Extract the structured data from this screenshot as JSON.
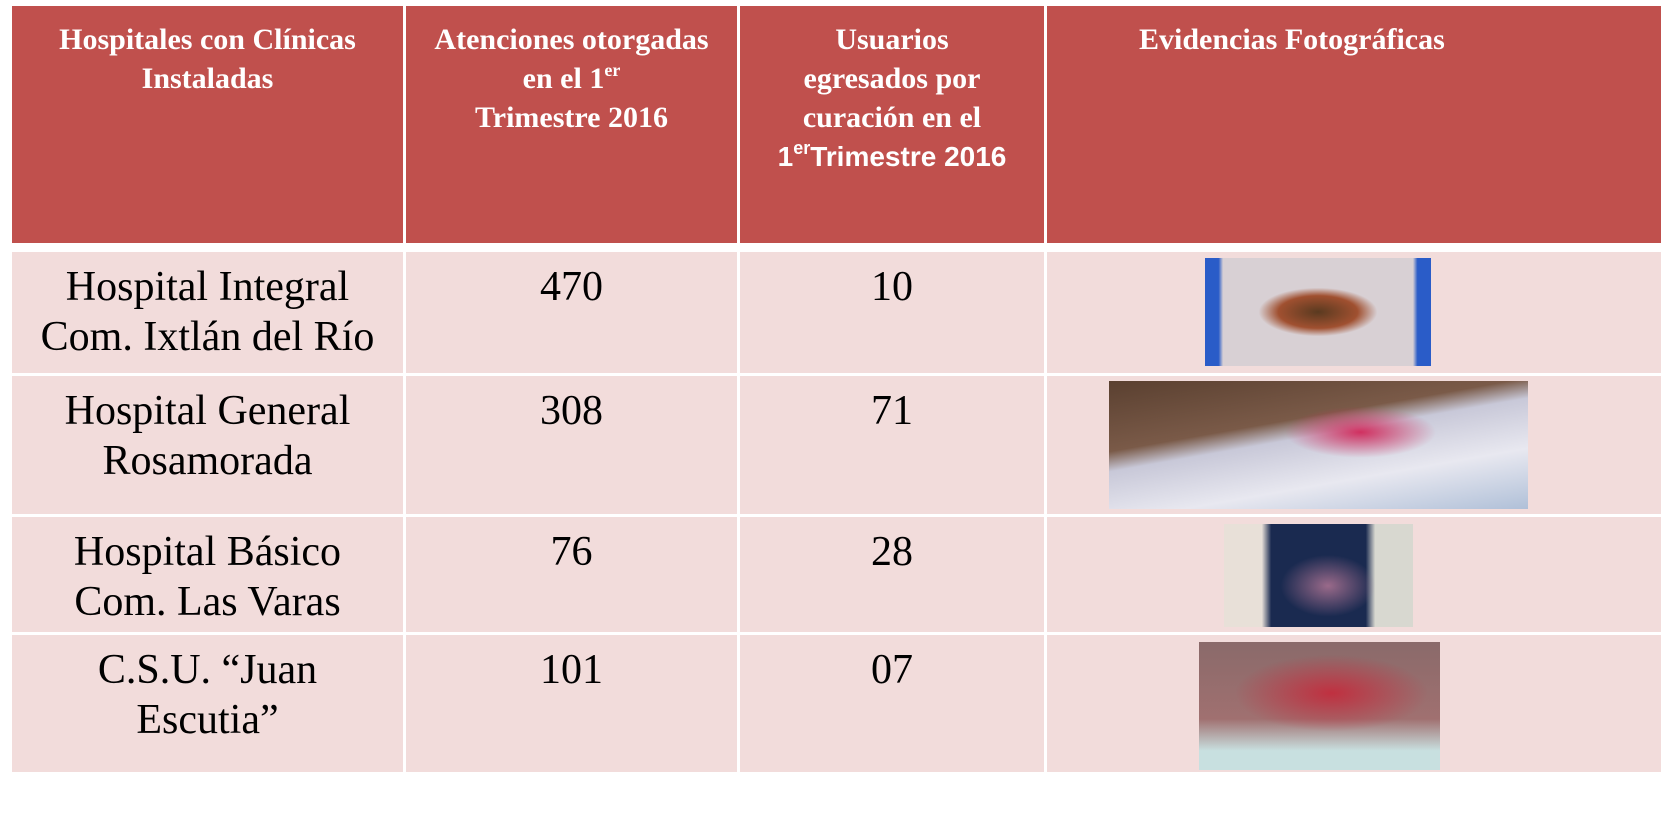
{
  "table": {
    "header": [
      "Hospitales con Clínicas Instaladas",
      {
        "text": "Atenciones otorgadas en el 1",
        "sup": "er",
        "tail": "Trimestre 2016"
      },
      {
        "text": "Usuarios egresados por curación en el",
        "lead": "1",
        "sup": "er",
        "tail": "Trimestre 2016"
      },
      "Evidencias Fotográficas"
    ],
    "rows": [
      [
        "Hospital Integral Com. Ixtlán del Río",
        470,
        10
      ],
      [
        "Hospital General Rosamorada",
        308,
        71
      ],
      [
        "Hospital Básico Com. Las Varas",
        76,
        28
      ],
      [
        "C.S.U. “Juan Escutia”",
        101,
        "07"
      ]
    ]
  }
}
